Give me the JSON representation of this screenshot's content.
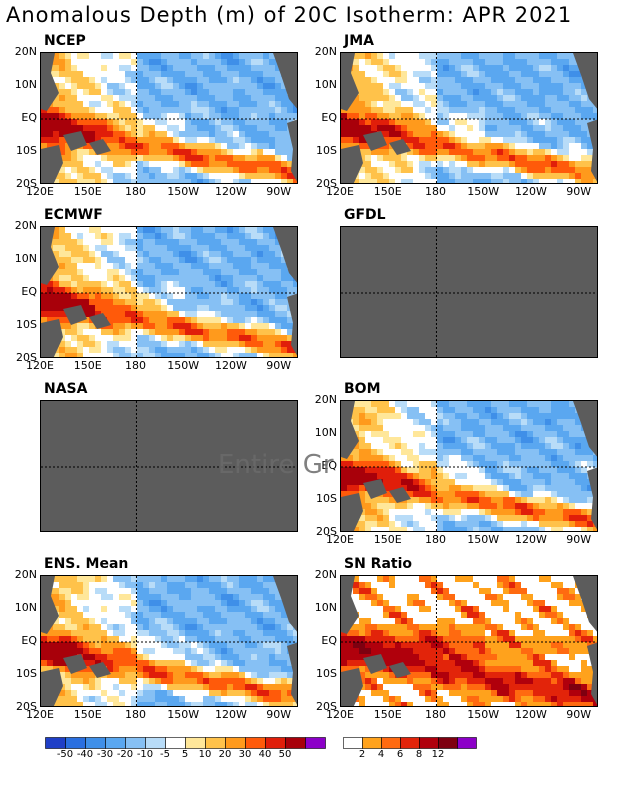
{
  "title": "Anomalous Depth (m) of 20C Isotherm: APR 2021",
  "overlay_text": "Entire Gr",
  "chart_data": {
    "type": "heatmap",
    "variable": "Anomalous Depth (m) of 20C Isotherm",
    "period": "APR 2021",
    "lat_ticks": [
      "20N",
      "10N",
      "EQ",
      "10S",
      "20S"
    ],
    "lon_ticks": [
      "120E",
      "150E",
      "180",
      "150W",
      "120W",
      "90W"
    ],
    "panels": [
      {
        "name": "NCEP",
        "status": "data",
        "scale": "anomaly"
      },
      {
        "name": "JMA",
        "status": "data",
        "scale": "anomaly"
      },
      {
        "name": "ECMWF",
        "status": "data",
        "scale": "anomaly"
      },
      {
        "name": "GFDL",
        "status": "missing",
        "scale": "anomaly"
      },
      {
        "name": "NASA",
        "status": "missing",
        "scale": "anomaly"
      },
      {
        "name": "BOM",
        "status": "data",
        "scale": "anomaly"
      },
      {
        "name": "ENS. Mean",
        "status": "data",
        "scale": "anomaly"
      },
      {
        "name": "SN Ratio",
        "status": "data",
        "scale": "snratio"
      }
    ],
    "anomaly_colorbar": {
      "labels": [
        "-50",
        "-40",
        "-30",
        "-20",
        "-10",
        "-5",
        "5",
        "10",
        "20",
        "30",
        "40",
        "50"
      ],
      "colors": [
        "#1f3fc7",
        "#2a6fe0",
        "#3f8fe8",
        "#5aa7f0",
        "#86c0f4",
        "#b8dcf8",
        "#ffffff",
        "#ffe79a",
        "#ffc24a",
        "#ff9a1c",
        "#ff5a0a",
        "#e01e0a",
        "#a8000a",
        "#8c00c8"
      ]
    },
    "snratio_colorbar": {
      "labels": [
        "2",
        "4",
        "6",
        "8",
        "12"
      ],
      "colors": [
        "#ffffff",
        "#ffa21c",
        "#ff6a10",
        "#e2240a",
        "#b0000c",
        "#7e0010",
        "#8c00c8"
      ]
    }
  },
  "colors": {
    "land": "#5c5c5c",
    "missing_panel": "#5c5c5c"
  }
}
